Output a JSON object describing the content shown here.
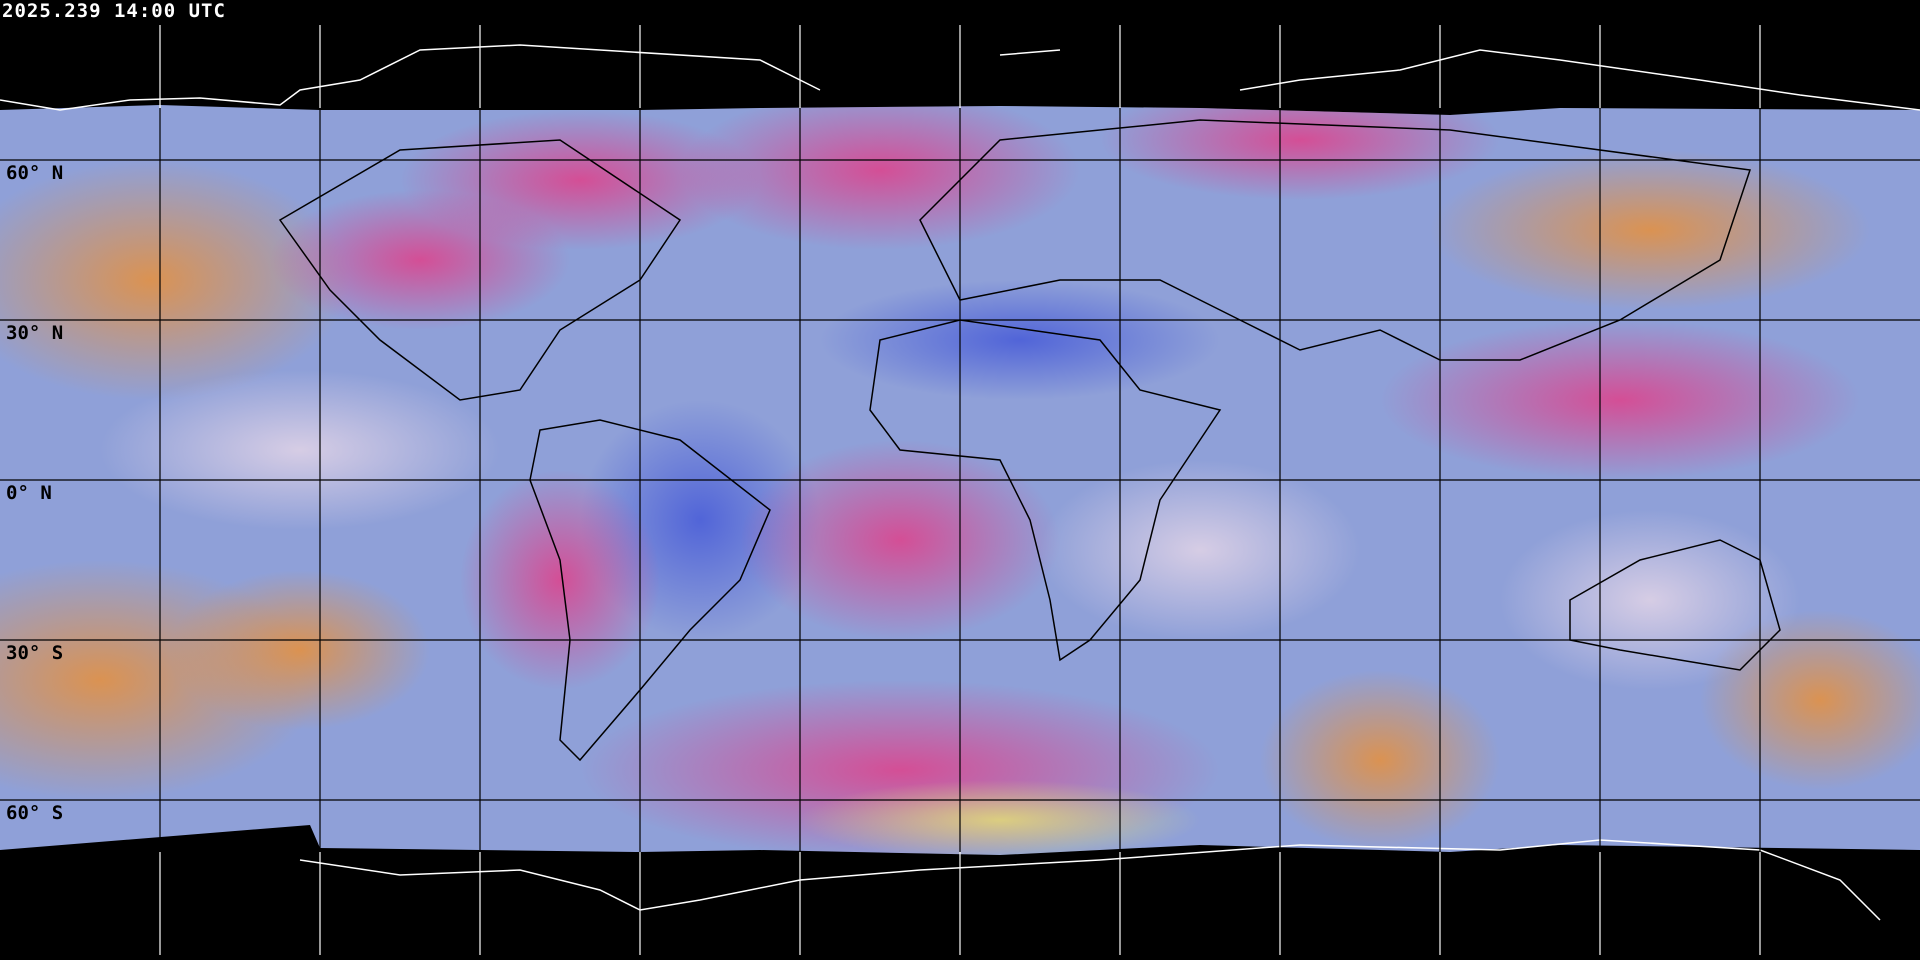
{
  "timestamp": "2025.239 14:00 UTC",
  "latitude_labels": [
    "60° N",
    "30° N",
    "0° N",
    "30° S",
    "60° S"
  ],
  "grid": {
    "longitude_step_deg": 30,
    "latitude_step_deg": 30
  },
  "colors": {
    "background": "#000000",
    "ocean_base": "#8fa0d8",
    "deep_blue": "#4a5ed8",
    "magenta": "#e0408a",
    "orange": "#e8903a",
    "yellow": "#e8e070",
    "grid_over_image": "#000000",
    "grid_over_background": "#ffffff",
    "coastline_over_background": "#ffffff"
  }
}
